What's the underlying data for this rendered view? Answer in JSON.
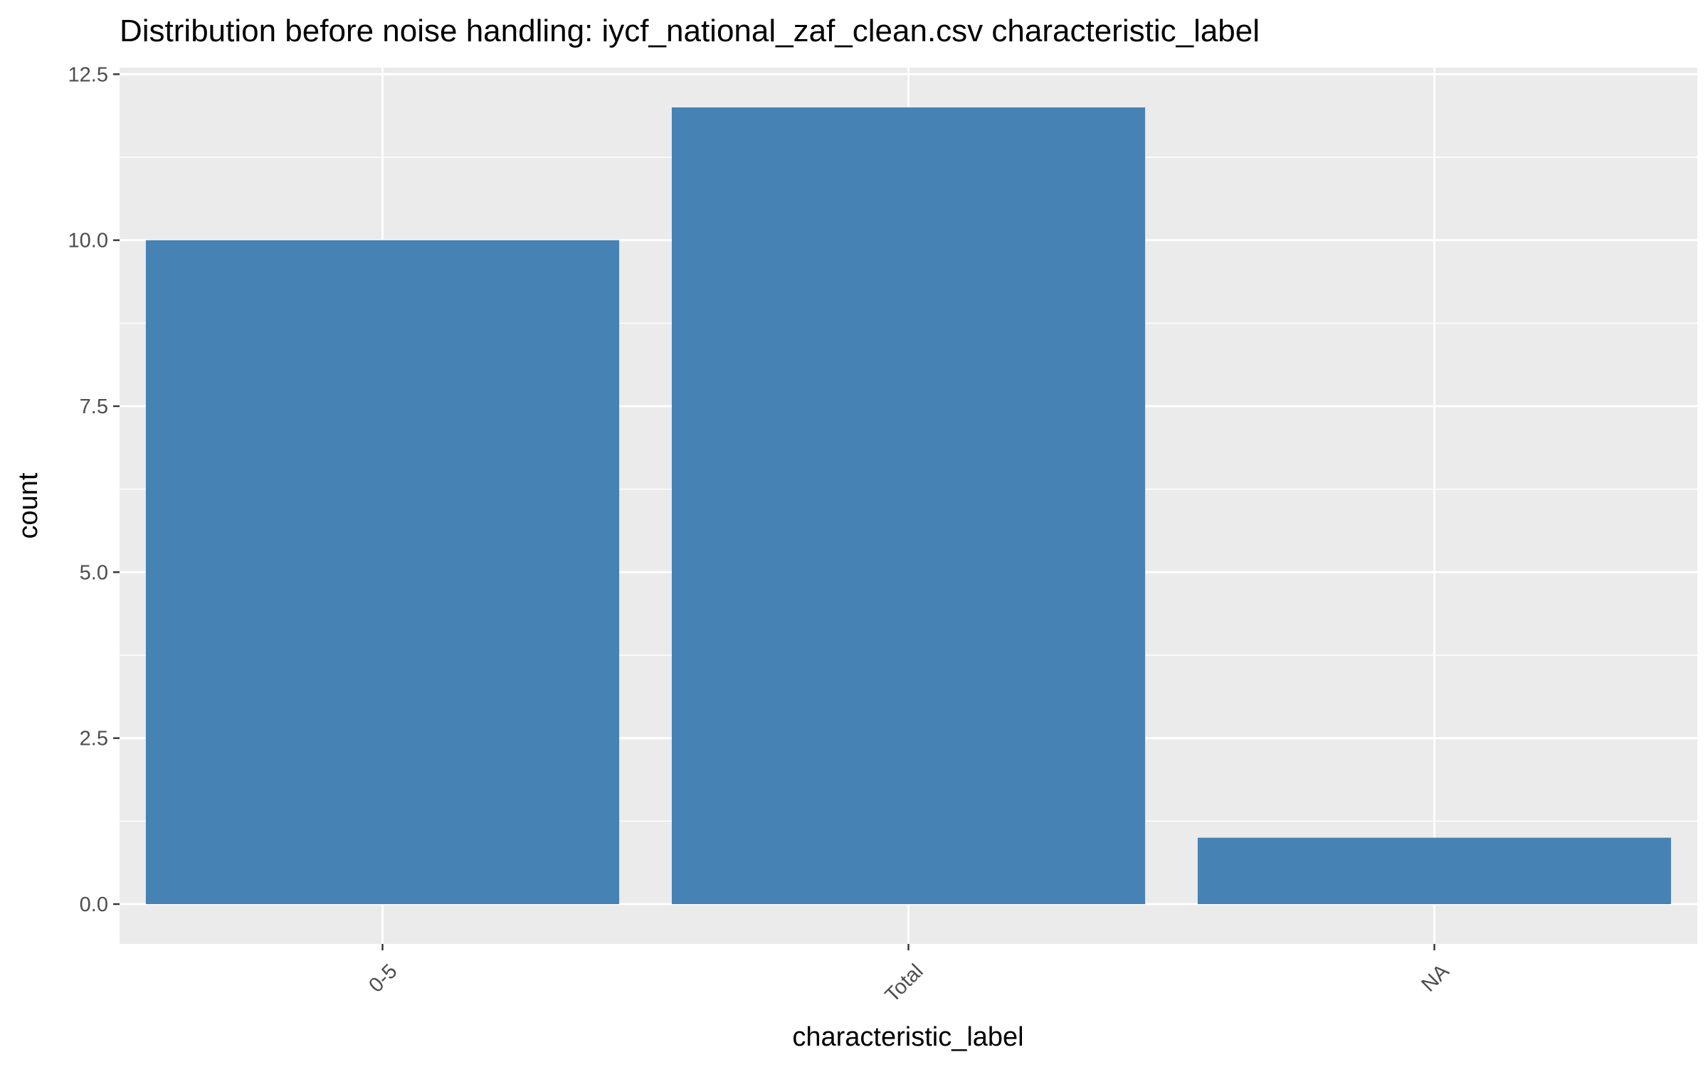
{
  "chart_data": {
    "type": "bar",
    "title": "Distribution before noise handling: iycf_national_zaf_clean.csv characteristic_label",
    "xlabel": "characteristic_label",
    "ylabel": "count",
    "categories": [
      "0-5",
      "Total",
      "NA"
    ],
    "values": [
      10,
      12,
      1
    ],
    "ylim": [
      -0.6,
      12.6
    ],
    "yticks": [
      0,
      2.5,
      5,
      7.5,
      10,
      12.5
    ],
    "ytick_labels": [
      "0.0",
      "2.5",
      "5.0",
      "7.5",
      "10.0",
      "12.5"
    ],
    "grid": true,
    "legend": "none",
    "bar_color": "#4682b4",
    "panel_background": "#ebebeb",
    "grid_color": "#ffffff"
  }
}
